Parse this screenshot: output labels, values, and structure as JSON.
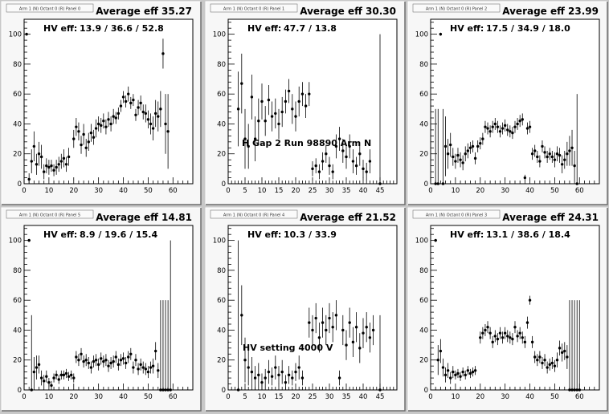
{
  "chart_data": [
    {
      "type": "scatter",
      "panel_label": "Arm 1 (N) Octant 0 (R) Panel 0",
      "title": "Average eff 35.27",
      "hv_label": "HV eff:",
      "hv_values": "13.9 / 36.6 / 52.8",
      "annotation": "",
      "xlim": [
        0,
        68
      ],
      "ylim": [
        0,
        110
      ],
      "xticks": [
        0,
        10,
        20,
        30,
        40,
        50,
        60
      ],
      "yticks": [
        0,
        20,
        40,
        60,
        80,
        100
      ],
      "series": [
        {
          "x": [
            1,
            2,
            3,
            4,
            5,
            6,
            7,
            8,
            9,
            10,
            11,
            12,
            13,
            14,
            15,
            16,
            17,
            18,
            20,
            21,
            22,
            23,
            24,
            25,
            26,
            27,
            28,
            29,
            30,
            31,
            32,
            33,
            34,
            35,
            36,
            37,
            38,
            39,
            40,
            41,
            42,
            43,
            44,
            45,
            46,
            47,
            48,
            49,
            50,
            51,
            52,
            53,
            54,
            55,
            56,
            57,
            58
          ],
          "y": [
            100,
            3,
            15,
            25,
            13,
            20,
            18,
            8,
            12,
            11,
            12,
            9,
            11,
            13,
            15,
            17,
            13,
            18,
            30,
            38,
            35,
            26,
            33,
            24,
            28,
            34,
            31,
            37,
            40,
            39,
            42,
            38,
            43,
            40,
            45,
            44,
            47,
            52,
            58,
            55,
            60,
            54,
            56,
            46,
            51,
            54,
            48,
            47,
            43,
            40,
            37,
            47,
            45,
            50,
            87,
            40,
            35
          ],
          "err": [
            1,
            4,
            8,
            10,
            7,
            8,
            8,
            5,
            5,
            5,
            4,
            4,
            5,
            5,
            5,
            6,
            5,
            6,
            6,
            6,
            6,
            6,
            7,
            6,
            6,
            6,
            5,
            6,
            5,
            5,
            5,
            5,
            5,
            5,
            5,
            4,
            4,
            4,
            4,
            4,
            5,
            4,
            4,
            4,
            5,
            5,
            5,
            6,
            6,
            7,
            8,
            9,
            10,
            12,
            10,
            20,
            25
          ]
        }
      ]
    },
    {
      "type": "scatter",
      "panel_label": "Arm 1 (N) Octant 0 (R) Panel 1",
      "title": "Average eff 30.30",
      "hv_label": "HV eff:",
      "hv_values": "47.7 / 13.8",
      "annotation": "H Gap 2 Run 98890 Arm N",
      "xlim": [
        0,
        50
      ],
      "ylim": [
        0,
        110
      ],
      "xticks": [
        0,
        5,
        10,
        15,
        20,
        25,
        30,
        35,
        40,
        45
      ],
      "yticks": [
        0,
        20,
        40,
        60,
        80,
        100
      ],
      "series": [
        {
          "x": [
            3,
            4,
            5,
            6,
            7,
            8,
            9,
            10,
            11,
            12,
            13,
            14,
            15,
            16,
            17,
            18,
            19,
            20,
            21,
            22,
            23,
            24,
            25,
            26,
            27,
            28,
            29,
            30,
            31,
            32,
            33,
            34,
            35,
            36,
            37,
            38,
            39,
            40,
            41,
            42,
            45
          ],
          "y": [
            50,
            67,
            30,
            25,
            58,
            30,
            42,
            55,
            42,
            56,
            45,
            47,
            40,
            48,
            55,
            62,
            50,
            45,
            55,
            60,
            52,
            60,
            10,
            12,
            8,
            15,
            20,
            12,
            8,
            25,
            30,
            22,
            18,
            25,
            15,
            12,
            20,
            10,
            8,
            15,
            0
          ],
          "err": [
            25,
            20,
            20,
            15,
            15,
            15,
            15,
            12,
            10,
            10,
            10,
            10,
            10,
            10,
            8,
            8,
            10,
            10,
            10,
            8,
            8,
            8,
            5,
            5,
            5,
            6,
            6,
            6,
            5,
            8,
            8,
            8,
            8,
            8,
            8,
            6,
            8,
            6,
            6,
            8,
            100
          ]
        }
      ]
    },
    {
      "type": "scatter",
      "panel_label": "Arm 1 (N) Octant 0 (R) Panel 2",
      "title": "Average eff 23.99",
      "hv_label": "HV eff:",
      "hv_values": "17.5 / 34.9 / 18.0",
      "annotation": "",
      "xlim": [
        0,
        68
      ],
      "ylim": [
        0,
        110
      ],
      "xticks": [
        0,
        10,
        20,
        30,
        40,
        50,
        60
      ],
      "yticks": [
        0,
        20,
        40,
        60,
        80,
        100
      ],
      "series": [
        {
          "x": [
            2,
            3,
            4,
            5,
            6,
            7,
            8,
            9,
            10,
            11,
            12,
            13,
            14,
            15,
            16,
            17,
            18,
            19,
            20,
            21,
            22,
            23,
            24,
            25,
            26,
            27,
            28,
            29,
            30,
            31,
            32,
            33,
            34,
            35,
            36,
            37,
            38,
            39,
            40,
            41,
            42,
            43,
            44,
            45,
            46,
            47,
            48,
            49,
            50,
            51,
            52,
            53,
            54,
            55,
            56,
            57,
            58,
            59
          ],
          "y": [
            0,
            0,
            100,
            0,
            25,
            20,
            26,
            18,
            15,
            19,
            16,
            14,
            20,
            22,
            24,
            25,
            17,
            25,
            27,
            30,
            38,
            37,
            35,
            38,
            40,
            38,
            35,
            37,
            39,
            36,
            35,
            34,
            38,
            40,
            42,
            43,
            4,
            37,
            38,
            20,
            22,
            18,
            15,
            25,
            21,
            18,
            20,
            18,
            16,
            20,
            19,
            13,
            16,
            20,
            22,
            24,
            12,
            0
          ],
          "err": [
            50,
            50,
            1,
            50,
            20,
            10,
            8,
            6,
            5,
            5,
            5,
            5,
            5,
            5,
            4,
            4,
            4,
            4,
            4,
            4,
            4,
            4,
            4,
            4,
            4,
            4,
            4,
            4,
            4,
            4,
            4,
            4,
            4,
            4,
            4,
            4,
            2,
            4,
            4,
            4,
            4,
            4,
            4,
            4,
            4,
            4,
            4,
            4,
            5,
            5,
            5,
            6,
            6,
            8,
            10,
            12,
            10,
            60
          ]
        }
      ]
    },
    {
      "type": "scatter",
      "panel_label": "Arm 1 (N) Octant 0 (R) Panel 5",
      "title": "Average eff 14.81",
      "hv_label": "HV eff:",
      "hv_values": "8.9 / 19.6 / 15.4",
      "annotation": "",
      "xlim": [
        0,
        68
      ],
      "ylim": [
        0,
        110
      ],
      "xticks": [
        0,
        10,
        20,
        30,
        40,
        50,
        60
      ],
      "yticks": [
        0,
        20,
        40,
        60,
        80,
        100
      ],
      "series": [
        {
          "x": [
            2,
            3,
            4,
            5,
            6,
            7,
            8,
            9,
            10,
            11,
            12,
            13,
            14,
            15,
            16,
            17,
            18,
            19,
            20,
            21,
            22,
            23,
            24,
            25,
            26,
            27,
            28,
            29,
            30,
            31,
            32,
            33,
            34,
            35,
            36,
            37,
            38,
            39,
            40,
            41,
            42,
            43,
            44,
            45,
            46,
            47,
            48,
            49,
            50,
            51,
            52,
            53,
            54,
            55,
            56,
            57,
            58,
            59
          ],
          "y": [
            100,
            0,
            12,
            15,
            17,
            8,
            6,
            9,
            5,
            3,
            8,
            10,
            7,
            10,
            10,
            11,
            9,
            10,
            8,
            22,
            20,
            24,
            19,
            20,
            18,
            15,
            19,
            20,
            17,
            21,
            19,
            20,
            16,
            18,
            19,
            22,
            17,
            20,
            21,
            18,
            22,
            24,
            15,
            20,
            14,
            17,
            15,
            14,
            12,
            15,
            16,
            26,
            13,
            0,
            0,
            0,
            0,
            0
          ],
          "err": [
            1,
            50,
            10,
            8,
            6,
            5,
            4,
            4,
            3,
            3,
            3,
            3,
            3,
            3,
            3,
            3,
            3,
            3,
            3,
            4,
            4,
            4,
            4,
            4,
            4,
            4,
            4,
            4,
            4,
            4,
            4,
            4,
            4,
            4,
            4,
            4,
            4,
            4,
            4,
            4,
            4,
            4,
            4,
            4,
            4,
            4,
            4,
            4,
            4,
            4,
            5,
            6,
            5,
            60,
            60,
            60,
            60,
            100
          ]
        }
      ]
    },
    {
      "type": "scatter",
      "panel_label": "Arm 1 (N) Octant 0 (R) Panel 4",
      "title": "Average eff 21.52",
      "hv_label": "HV eff:",
      "hv_values": "10.3 / 33.9",
      "annotation": "HV setting 4000 V",
      "xlim": [
        0,
        50
      ],
      "ylim": [
        0,
        110
      ],
      "xticks": [
        0,
        5,
        10,
        15,
        20,
        25,
        30,
        35,
        40,
        45
      ],
      "yticks": [
        0,
        20,
        40,
        60,
        80,
        100
      ],
      "series": [
        {
          "x": [
            3,
            4,
            5,
            6,
            7,
            8,
            9,
            10,
            11,
            12,
            13,
            14,
            15,
            16,
            17,
            18,
            19,
            20,
            21,
            22,
            24,
            25,
            26,
            27,
            28,
            29,
            30,
            31,
            32,
            33,
            34,
            35,
            36,
            37,
            38,
            39,
            40,
            41,
            42,
            43,
            45
          ],
          "y": [
            0,
            50,
            20,
            15,
            12,
            8,
            10,
            5,
            8,
            12,
            9,
            15,
            10,
            12,
            5,
            10,
            8,
            12,
            15,
            8,
            45,
            40,
            48,
            35,
            45,
            40,
            48,
            42,
            50,
            8,
            40,
            30,
            45,
            32,
            42,
            28,
            38,
            42,
            35,
            40,
            0
          ],
          "err": [
            100,
            20,
            15,
            12,
            10,
            8,
            8,
            6,
            6,
            8,
            6,
            8,
            6,
            8,
            5,
            6,
            5,
            6,
            8,
            5,
            10,
            10,
            10,
            10,
            10,
            10,
            10,
            10,
            10,
            5,
            10,
            10,
            10,
            10,
            10,
            10,
            10,
            10,
            10,
            10,
            50
          ]
        }
      ]
    },
    {
      "type": "scatter",
      "panel_label": "Arm 1 (N) Octant 0 (R) Panel 3",
      "title": "Average eff 24.31",
      "hv_label": "HV eff:",
      "hv_values": "13.1 / 38.6 / 18.4",
      "annotation": "",
      "xlim": [
        0,
        68
      ],
      "ylim": [
        0,
        110
      ],
      "xticks": [
        0,
        10,
        20,
        30,
        40,
        50,
        60
      ],
      "yticks": [
        0,
        20,
        40,
        60,
        80,
        100
      ],
      "series": [
        {
          "x": [
            2,
            3,
            4,
            5,
            6,
            7,
            8,
            9,
            10,
            11,
            12,
            13,
            14,
            15,
            16,
            17,
            18,
            20,
            21,
            22,
            23,
            24,
            25,
            26,
            27,
            28,
            29,
            30,
            31,
            32,
            33,
            34,
            35,
            36,
            37,
            38,
            39,
            40,
            41,
            42,
            43,
            44,
            45,
            46,
            47,
            48,
            49,
            50,
            51,
            52,
            53,
            54,
            55,
            56,
            57,
            58,
            59,
            60
          ],
          "y": [
            100,
            20,
            26,
            15,
            10,
            13,
            8,
            12,
            10,
            11,
            9,
            12,
            10,
            13,
            11,
            12,
            13,
            35,
            38,
            40,
            42,
            38,
            32,
            36,
            34,
            38,
            35,
            38,
            36,
            35,
            34,
            42,
            36,
            38,
            35,
            32,
            45,
            60,
            32,
            22,
            20,
            22,
            18,
            20,
            15,
            17,
            18,
            16,
            20,
            28,
            25,
            26,
            22,
            0,
            0,
            0,
            0,
            0
          ],
          "err": [
            1,
            10,
            8,
            6,
            5,
            5,
            4,
            4,
            3,
            3,
            3,
            3,
            3,
            3,
            3,
            3,
            3,
            4,
            4,
            4,
            4,
            4,
            4,
            4,
            4,
            4,
            4,
            4,
            4,
            4,
            4,
            4,
            4,
            4,
            4,
            4,
            4,
            3,
            4,
            4,
            4,
            4,
            4,
            4,
            4,
            4,
            4,
            4,
            5,
            5,
            6,
            6,
            8,
            60,
            60,
            60,
            60,
            60
          ]
        }
      ]
    }
  ]
}
